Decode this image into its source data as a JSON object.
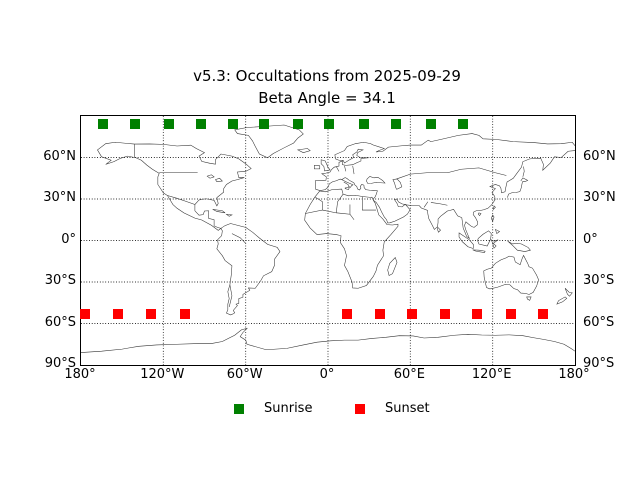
{
  "title": {
    "line1": "v5.3: Occultations from 2025-09-29",
    "line2": "Beta Angle = 34.1"
  },
  "colors": {
    "sunrise": "#008000",
    "sunset": "#ff0000",
    "grid": "#000000",
    "coastline": "#333333",
    "background": "#ffffff"
  },
  "axes": {
    "lon_range": [
      -180,
      180
    ],
    "lat_range": [
      -90,
      90
    ],
    "grid": "dotted",
    "lat_ticks": [
      {
        "label": "60°N",
        "lat": 60
      },
      {
        "label": "30°N",
        "lat": 30
      },
      {
        "label": "0°",
        "lat": 0
      },
      {
        "label": "30°S",
        "lat": -30
      },
      {
        "label": "60°S",
        "lat": -60
      },
      {
        "label": "90°S",
        "lat": -90
      }
    ],
    "lon_ticks": [
      {
        "label": "180°",
        "lon": -180
      },
      {
        "label": "120°W",
        "lon": -120
      },
      {
        "label": "60°W",
        "lon": -60
      },
      {
        "label": "0°",
        "lon": 0
      },
      {
        "label": "60°E",
        "lon": 60
      },
      {
        "label": "120°E",
        "lon": 120
      },
      {
        "label": "180°",
        "lon": 180
      }
    ],
    "gridline_lats": [
      60,
      30,
      0,
      -30,
      -60
    ],
    "gridline_lons": [
      -120,
      -60,
      0,
      60,
      120
    ]
  },
  "legend": {
    "items": [
      {
        "label": "Sunrise",
        "color": "#008000"
      },
      {
        "label": "Sunset",
        "color": "#ff0000"
      }
    ]
  },
  "chart_data": {
    "type": "scatter",
    "title": "v5.3: Occultations from 2025-09-29",
    "subtitle": "Beta Angle = 34.1",
    "projection": "equirectangular world map",
    "xlabel": "longitude",
    "ylabel": "latitude",
    "xlim": [
      -180,
      180
    ],
    "ylim": [
      -90,
      90
    ],
    "legend_position": "below plot, centered",
    "series": [
      {
        "name": "Sunrise",
        "marker": "square",
        "color": "#008000",
        "points": [
          {
            "lon": -164,
            "lat": 84
          },
          {
            "lon": -141,
            "lat": 84
          },
          {
            "lon": -116,
            "lat": 84
          },
          {
            "lon": -92.5,
            "lat": 84
          },
          {
            "lon": -69,
            "lat": 84
          },
          {
            "lon": -46.5,
            "lat": 84
          },
          {
            "lon": -22,
            "lat": 84
          },
          {
            "lon": 0.5,
            "lat": 84
          },
          {
            "lon": 26,
            "lat": 84
          },
          {
            "lon": 49.5,
            "lat": 84
          },
          {
            "lon": 75,
            "lat": 84
          },
          {
            "lon": 98.5,
            "lat": 84
          }
        ]
      },
      {
        "name": "Sunset",
        "marker": "square",
        "color": "#ff0000",
        "points": [
          {
            "lon": -177,
            "lat": -53
          },
          {
            "lon": -153,
            "lat": -53
          },
          {
            "lon": -129,
            "lat": -53
          },
          {
            "lon": -104,
            "lat": -53
          },
          {
            "lon": 14,
            "lat": -53
          },
          {
            "lon": 38,
            "lat": -53
          },
          {
            "lon": 61,
            "lat": -53
          },
          {
            "lon": 85.5,
            "lat": -53
          },
          {
            "lon": 108.5,
            "lat": -53
          },
          {
            "lon": 133.5,
            "lat": -53
          },
          {
            "lon": 157,
            "lat": -53
          }
        ]
      }
    ]
  }
}
